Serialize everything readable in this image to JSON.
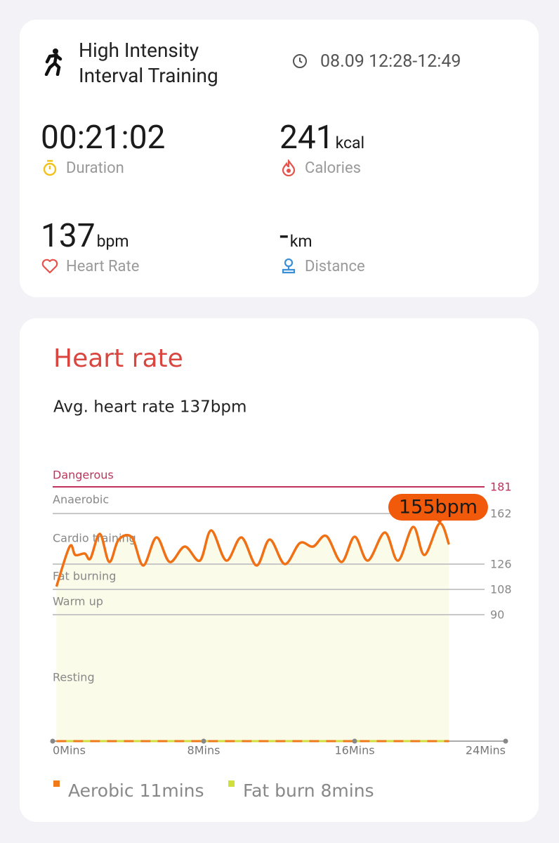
{
  "workout": {
    "title_lines": [
      "High Intensity",
      "Interval Training"
    ],
    "time": "08.09 12:28-12:49"
  },
  "stats": [
    {
      "value": "00:21:02",
      "label": "Duration"
    },
    {
      "value": "241",
      "unit": "kcal",
      "label": "Calories"
    },
    {
      "value": "137",
      "unit": "bpm",
      "label": "Heart Rate"
    },
    {
      "value": "-",
      "unit": "km",
      "label": "Distance"
    }
  ],
  "chart_data": {
    "type": "line",
    "title": "Heart rate",
    "subtitle": "Avg. heart rate 137bpm",
    "annotation": "155bpm",
    "x": [
      0.2,
      0.9,
      1.2,
      1.7,
      2.0,
      2.5,
      3.0,
      3.5,
      4.2,
      4.8,
      5.5,
      6.2,
      7.0,
      7.8,
      8.4,
      9.2,
      10.0,
      10.8,
      11.5,
      12.3,
      13.1,
      13.8,
      14.5,
      15.3,
      16.0,
      16.7,
      17.6,
      18.3,
      19.1,
      19.7,
      20.5,
      21.0
    ],
    "series": [
      {
        "name": "Heart rate",
        "color": "#f07016",
        "values": [
          110,
          138.5,
          132.5,
          133.5,
          130,
          147.5,
          127.5,
          143.5,
          145,
          125,
          145,
          127.5,
          138.5,
          128.5,
          150,
          128.5,
          145,
          125,
          143.5,
          126,
          141,
          138.5,
          146,
          127.5,
          145.5,
          128.5,
          148.5,
          128.5,
          152.5,
          132.5,
          155,
          140
        ]
      }
    ],
    "xlim": [
      0,
      24
    ],
    "xticks": [
      {
        "value": 0,
        "label": "0Mins"
      },
      {
        "value": 8,
        "label": "8Mins"
      },
      {
        "value": 16,
        "label": "16Mins"
      },
      {
        "value": 24,
        "label": "24Mins"
      }
    ],
    "ylim": [
      0,
      181
    ],
    "yticks": [
      90,
      108,
      126,
      162,
      181
    ],
    "zone_names": [
      "Resting",
      "Warm up",
      "Fat burning",
      "Cardio training",
      "Anaerobic",
      "Dangerous"
    ],
    "danger_color": "#c0325c",
    "fill_color": "#fafbe8",
    "legend": [
      {
        "name": "Aerobic 11mins",
        "color": "#f07a1a"
      },
      {
        "name": "Fat burn 8mins",
        "color": "#cfdf3c"
      }
    ]
  }
}
